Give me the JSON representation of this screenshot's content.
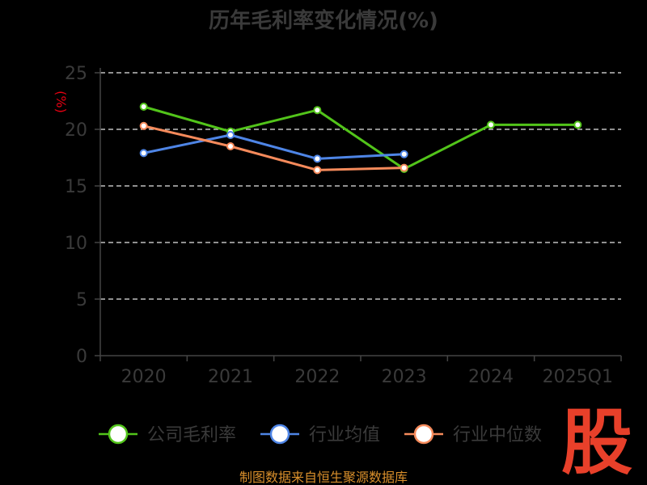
{
  "chart_data": {
    "type": "line",
    "title": "历年毛利率变化情况(%)",
    "ylabel": "(%)",
    "xlabel": "",
    "categories": [
      "2020",
      "2021",
      "2022",
      "2023",
      "2024",
      "2025Q1"
    ],
    "ylim": [
      0,
      25
    ],
    "yticks": [
      "0",
      "5",
      "10",
      "15",
      "20",
      "25"
    ],
    "grid": true,
    "legend_position": "bottom",
    "series": [
      {
        "name": "公司毛利率",
        "color": "#52c41a",
        "values": [
          22.0,
          19.8,
          21.7,
          16.5,
          20.4,
          20.4
        ]
      },
      {
        "name": "行业均值",
        "color": "#4e85e6",
        "values": [
          17.9,
          19.5,
          17.4,
          17.8,
          null,
          null
        ]
      },
      {
        "name": "行业中位数",
        "color": "#f58a5b",
        "values": [
          20.3,
          18.5,
          16.4,
          16.6,
          null,
          null
        ]
      }
    ]
  },
  "source_note": "制图数据来自恒生聚源数据库",
  "watermark": "股"
}
